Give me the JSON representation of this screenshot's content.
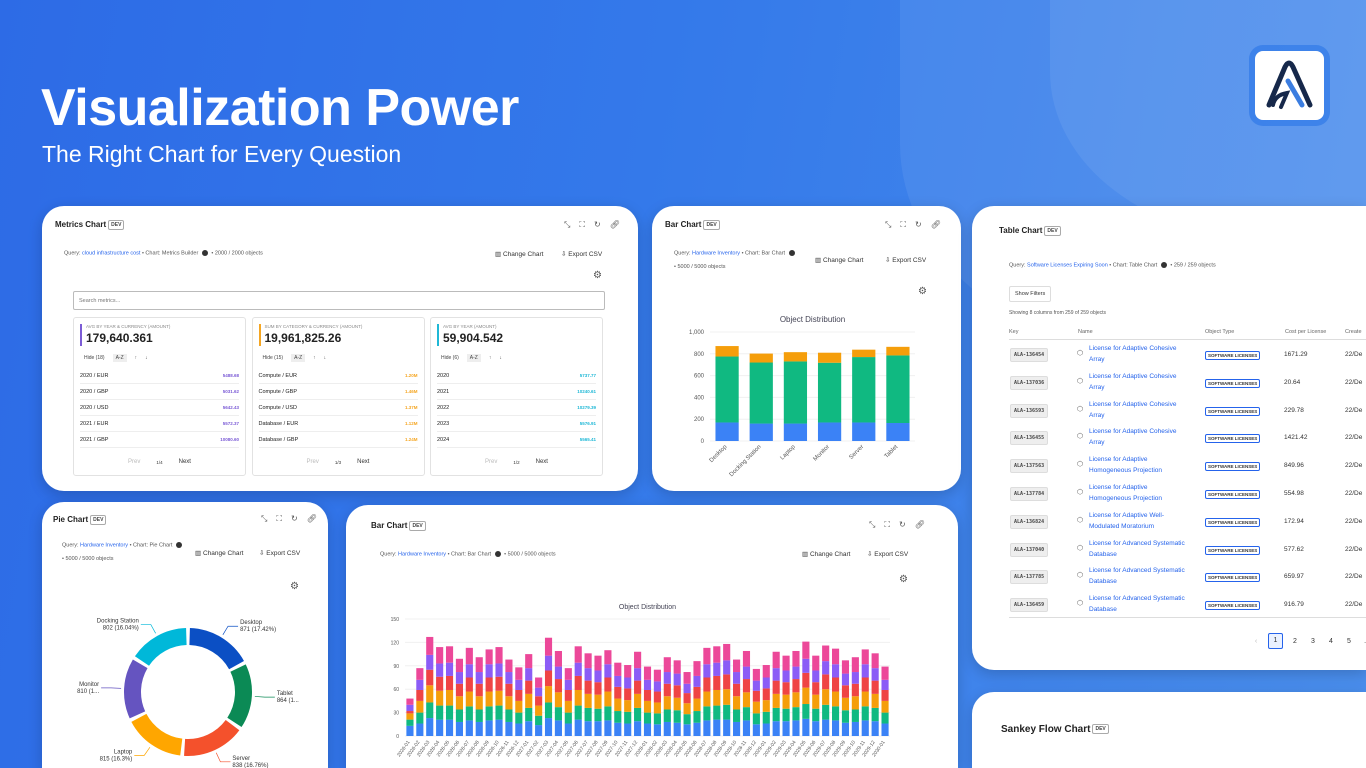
{
  "hero": {
    "title": "Visualization Power",
    "subtitle": "The Right Chart for Every Question"
  },
  "common": {
    "dev": "DEV",
    "change_chart": "Change Chart",
    "export_csv": "Export CSV",
    "query_label": "Query:",
    "prev": "Prev",
    "next": "Next"
  },
  "metrics_card": {
    "title": "Metrics Chart",
    "query": "cloud infrastructure cost",
    "chart": "Chart: Metrics Builder",
    "count": "2000 / 2000 objects",
    "search_placeholder": "Search metrics...",
    "boxes": [
      {
        "label": "AVG BY YEAR & CURRENCY (AMOUNT)",
        "value": "179,640.361",
        "hide": "Hide (18)",
        "az": "A-Z",
        "color": "#7c5cd6",
        "page": "1/4",
        "rows": [
          [
            "2020 / EUR",
            "5488.68"
          ],
          [
            "2020 / GBP",
            "5031.62"
          ],
          [
            "2020 / USD",
            "5642.43"
          ],
          [
            "2021 / EUR",
            "5572.37"
          ],
          [
            "2021 / GBP",
            "10080.60"
          ]
        ]
      },
      {
        "label": "SUM BY CATEGORY & CURRENCY (AMOUNT)",
        "value": "19,961,825.26",
        "hide": "Hide (15)",
        "az": "A-Z",
        "color": "#f5a623",
        "page": "1/3",
        "rows": [
          [
            "Compute / EUR",
            "1.20M"
          ],
          [
            "Compute / GBP",
            "1.46M"
          ],
          [
            "Compute / USD",
            "1.37M"
          ],
          [
            "Database / EUR",
            "1.12M"
          ],
          [
            "Database / GBP",
            "1.24M"
          ]
        ]
      },
      {
        "label": "AVG BY YEAR (AMOUNT)",
        "value": "59,904.542",
        "hide": "Hide (6)",
        "az": "A-Z",
        "color": "#1fb8d6",
        "page": "1/2",
        "rows": [
          [
            "2020",
            "5737.77"
          ],
          [
            "2021",
            "10240.61"
          ],
          [
            "2022",
            "10279.39"
          ],
          [
            "2023",
            "5576.91"
          ],
          [
            "2024",
            "5565.41"
          ]
        ]
      }
    ]
  },
  "bar_card": {
    "title": "Bar Chart",
    "query": "Hardware Inventory",
    "chart": "Chart: Bar Chart",
    "count": "5000 / 5000 objects"
  },
  "pie_card": {
    "title": "Pie Chart",
    "query": "Hardware Inventory",
    "chart": "Chart: Pie Chart",
    "count": "5000 / 5000 objects"
  },
  "bar2_card": {
    "title": "Bar Chart",
    "query": "Hardware Inventory",
    "chart": "Chart: Bar Chart",
    "count": "5000 / 5000 objects"
  },
  "table_card": {
    "title": "Table Chart",
    "query": "Software Licenses Expiring Soon",
    "chart": "Chart: Table Chart",
    "count": "259 / 259 objects",
    "show_filters": "Show Filters",
    "showing": "Showing 8 columns from 259 of 259 objects",
    "columns": [
      "Key",
      "Name",
      "Object Type",
      "Cost per License",
      "Create"
    ],
    "rows": [
      [
        "ALA-136454",
        "License for Adaptive Cohesive Array",
        "SOFTWARE LICENSES",
        "1671.29",
        "22/De"
      ],
      [
        "ALA-137036",
        "License for Adaptive Cohesive Array",
        "SOFTWARE LICENSES",
        "20.64",
        "22/De"
      ],
      [
        "ALA-136593",
        "License for Adaptive Cohesive Array",
        "SOFTWARE LICENSES",
        "229.78",
        "22/De"
      ],
      [
        "ALA-136455",
        "License for Adaptive Cohesive Array",
        "SOFTWARE LICENSES",
        "1421.42",
        "22/De"
      ],
      [
        "ALA-137563",
        "License for Adaptive Homogeneous Projection",
        "SOFTWARE LICENSES",
        "849.96",
        "22/De"
      ],
      [
        "ALA-137784",
        "License for Adaptive Homogeneous Projection",
        "SOFTWARE LICENSES",
        "554.98",
        "22/De"
      ],
      [
        "ALA-136824",
        "License for Adaptive Well-Modulated Moratorium",
        "SOFTWARE LICENSES",
        "172.94",
        "22/De"
      ],
      [
        "ALA-137040",
        "License for Advanced Systematic Database",
        "SOFTWARE LICENSES",
        "577.62",
        "22/De"
      ],
      [
        "ALA-137785",
        "License for Advanced Systematic Database",
        "SOFTWARE LICENSES",
        "659.97",
        "22/De"
      ],
      [
        "ALA-136459",
        "License for Advanced Systematic Database",
        "SOFTWARE LICENSES",
        "916.79",
        "22/De"
      ]
    ],
    "pages": [
      "1",
      "2",
      "3",
      "4",
      "5",
      "..."
    ],
    "current_page": "1"
  },
  "sankey_card": {
    "title": "Sankey Flow Chart"
  },
  "chart_data": [
    {
      "type": "bar",
      "stacked": true,
      "title": "Object Distribution",
      "categories": [
        "Desktop",
        "Docking Station",
        "Laptop",
        "Monitor",
        "Server",
        "Tablet"
      ],
      "ylim": [
        0,
        1000
      ],
      "yticks": [
        "0",
        "200",
        "400",
        "600",
        "800",
        "1,000"
      ],
      "series": [
        {
          "color": "#3b82f6",
          "values": [
            170,
            160,
            160,
            170,
            170,
            165
          ]
        },
        {
          "color": "#10b981",
          "values": [
            605,
            560,
            570,
            548,
            600,
            620
          ]
        },
        {
          "color": "#f59e0b",
          "values": [
            96,
            82,
            85,
            92,
            68,
            79
          ]
        }
      ]
    },
    {
      "type": "pie",
      "donut": true,
      "slices": [
        {
          "label": "Desktop",
          "text": "871 (17.42%)",
          "value": 871,
          "color": "#0b4fc4"
        },
        {
          "label": "Tablet",
          "text": "864 (1...",
          "value": 864,
          "color": "#0b8a55"
        },
        {
          "label": "Server",
          "text": "838 (16.76%)",
          "value": 838,
          "color": "#f4512c"
        },
        {
          "label": "Laptop",
          "text": "815 (16.3%)",
          "value": 815,
          "color": "#ffa600"
        },
        {
          "label": "Monitor",
          "text": "810 (1...",
          "value": 810,
          "color": "#6554c0"
        },
        {
          "label": "Docking Station",
          "text": "802 (16.04%)",
          "value": 802,
          "color": "#00b8d9"
        }
      ]
    },
    {
      "type": "bar",
      "stacked": true,
      "title": "Object Distribution",
      "ylim": [
        0,
        150
      ],
      "yticks": [
        "0",
        "30",
        "60",
        "90",
        "120",
        "150"
      ],
      "categories": [
        "2026-01",
        "2026-02",
        "2026-03",
        "2026-04",
        "2026-05",
        "2026-06",
        "2026-07",
        "2026-08",
        "2026-09",
        "2026-10",
        "2026-11",
        "2026-12",
        "2027-01",
        "2027-02",
        "2027-03",
        "2027-04",
        "2027-05",
        "2027-06",
        "2027-07",
        "2027-08",
        "2027-09",
        "2027-10",
        "2027-11",
        "2027-12",
        "2028-01",
        "2028-02",
        "2028-03",
        "2028-04",
        "2028-05",
        "2028-06",
        "2028-07",
        "2028-08",
        "2028-09",
        "2028-10",
        "2028-11",
        "2028-12",
        "2029-01",
        "2029-02",
        "2029-03",
        "2029-04",
        "2029-05",
        "2029-06",
        "2029-07",
        "2029-08",
        "2029-09",
        "2029-10",
        "2029-11",
        "2029-12",
        "2030-01"
      ],
      "series": [
        {
          "color": "#3b82f6",
          "values": [
            13,
            16,
            23,
            21,
            21,
            18,
            20,
            18,
            20,
            21,
            18,
            16,
            19,
            14,
            23,
            20,
            16,
            21,
            19,
            19,
            20,
            17,
            16,
            19,
            16,
            15,
            18,
            17,
            15,
            17,
            20,
            21,
            21,
            18,
            20,
            15,
            16,
            19,
            19,
            20,
            22,
            19,
            21,
            20,
            17,
            18,
            20,
            19,
            16
          ]
        },
        {
          "color": "#10b981",
          "values": [
            8,
            14,
            20,
            18,
            18,
            16,
            18,
            16,
            18,
            18,
            16,
            14,
            17,
            12,
            20,
            17,
            14,
            18,
            17,
            16,
            18,
            15,
            15,
            17,
            14,
            14,
            16,
            16,
            13,
            15,
            18,
            18,
            19,
            16,
            17,
            14,
            15,
            17,
            16,
            17,
            19,
            16,
            19,
            18,
            16,
            16,
            18,
            17,
            14
          ]
        },
        {
          "color": "#f59e0b",
          "values": [
            8,
            15,
            22,
            19,
            20,
            17,
            19,
            17,
            19,
            19,
            17,
            15,
            18,
            13,
            21,
            19,
            15,
            20,
            18,
            18,
            19,
            16,
            15,
            18,
            15,
            14,
            17,
            16,
            14,
            16,
            19,
            20,
            20,
            17,
            19,
            15,
            15,
            18,
            18,
            19,
            21,
            18,
            20,
            19,
            16,
            17,
            19,
            18,
            15
          ]
        },
        {
          "color": "#ef4444",
          "values": [
            3,
            14,
            20,
            18,
            18,
            16,
            18,
            16,
            18,
            18,
            16,
            14,
            17,
            12,
            20,
            17,
            14,
            18,
            17,
            16,
            18,
            15,
            15,
            17,
            14,
            14,
            16,
            16,
            13,
            15,
            18,
            18,
            19,
            16,
            17,
            14,
            15,
            17,
            16,
            17,
            19,
            16,
            19,
            18,
            16,
            16,
            18,
            17,
            14
          ]
        },
        {
          "color": "#8b5cf6",
          "values": [
            8,
            13,
            19,
            17,
            17,
            15,
            17,
            15,
            17,
            17,
            15,
            13,
            16,
            11,
            19,
            16,
            13,
            17,
            16,
            15,
            17,
            14,
            14,
            16,
            13,
            13,
            15,
            15,
            12,
            14,
            17,
            17,
            18,
            15,
            16,
            13,
            14,
            16,
            15,
            16,
            18,
            15,
            17,
            17,
            15,
            15,
            17,
            16,
            13
          ]
        },
        {
          "color": "#ec4899",
          "values": [
            8,
            15,
            23,
            21,
            21,
            17,
            21,
            19,
            19,
            21,
            16,
            16,
            18,
            13,
            23,
            20,
            15,
            21,
            19,
            19,
            18,
            17,
            16,
            21,
            17,
            15,
            19,
            17,
            15,
            19,
            21,
            21,
            21,
            16,
            20,
            15,
            16,
            21,
            19,
            20,
            22,
            19,
            20,
            20,
            17,
            19,
            19,
            19,
            17
          ]
        }
      ]
    }
  ]
}
